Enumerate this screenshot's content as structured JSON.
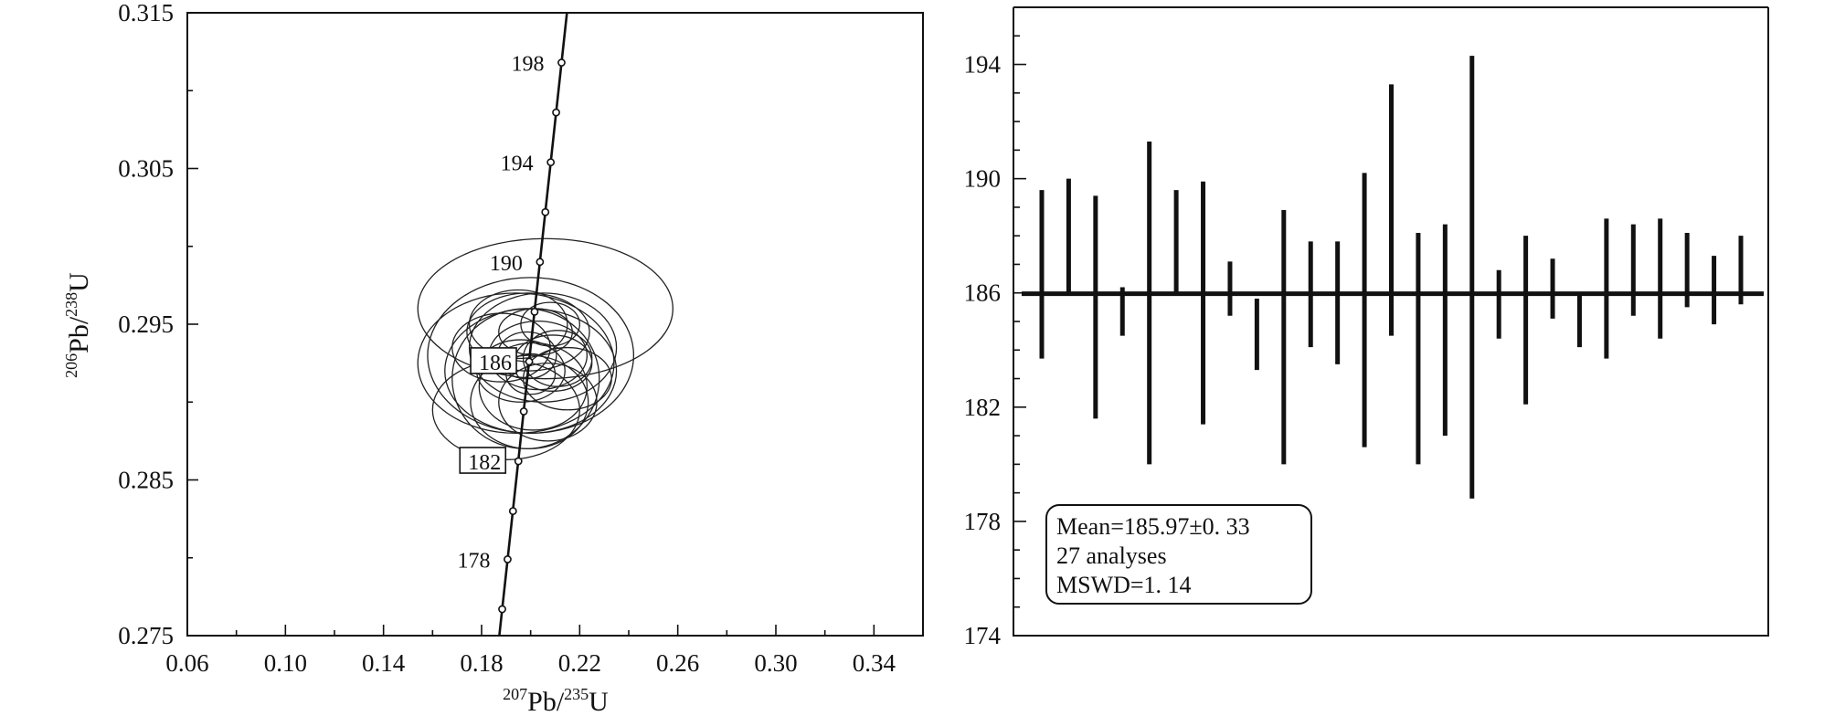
{
  "chart_data": [
    {
      "type": "concordia",
      "xlabel": {
        "sup": "207",
        "main": "Pb/",
        "sup2": "235",
        "end": "U"
      },
      "ylabel": {
        "sup": "206",
        "main": "Pb/",
        "sup2": "238",
        "end": "U"
      },
      "xlim": [
        0.06,
        0.36
      ],
      "ylim": [
        0.275,
        0.315
      ],
      "x_ticks": [
        "0.06",
        "0.10",
        "0.14",
        "0.18",
        "0.22",
        "0.26",
        "0.30",
        "0.34"
      ],
      "y_ticks": [
        "0.275",
        "0.285",
        "0.295",
        "0.305",
        "0.315"
      ],
      "grid": false,
      "concordia_points": [
        {
          "age": 176,
          "x": 0.1884,
          "y": 0.2767
        },
        {
          "age": 178,
          "x": 0.1906,
          "y": 0.2799
        },
        {
          "age": 180,
          "x": 0.1928,
          "y": 0.283
        },
        {
          "age": 182,
          "x": 0.195,
          "y": 0.2862
        },
        {
          "age": 184,
          "x": 0.1972,
          "y": 0.2894
        },
        {
          "age": 186,
          "x": 0.1994,
          "y": 0.2926
        },
        {
          "age": 188,
          "x": 0.2016,
          "y": 0.2958
        },
        {
          "age": 190,
          "x": 0.2038,
          "y": 0.299
        },
        {
          "age": 192,
          "x": 0.206,
          "y": 0.3022
        },
        {
          "age": 194,
          "x": 0.2082,
          "y": 0.3054
        },
        {
          "age": 196,
          "x": 0.2104,
          "y": 0.3086
        },
        {
          "age": 198,
          "x": 0.2126,
          "y": 0.3118
        }
      ],
      "age_labels": [
        {
          "text": "198",
          "age": 198,
          "boxed": false
        },
        {
          "text": "194",
          "age": 194,
          "boxed": false
        },
        {
          "text": "190",
          "age": 190,
          "boxed": false
        },
        {
          "text": "186",
          "age": 186,
          "boxed": true
        },
        {
          "text": "182",
          "age": 182,
          "boxed": true
        },
        {
          "text": "178",
          "age": 178,
          "boxed": false
        }
      ],
      "error_ellipses": [
        {
          "cx": 0.206,
          "cy": 0.296,
          "rx": 0.052,
          "ry": 0.0045
        },
        {
          "cx": 0.2,
          "cy": 0.293,
          "rx": 0.042,
          "ry": 0.005
        },
        {
          "cx": 0.194,
          "cy": 0.2925,
          "rx": 0.04,
          "ry": 0.0045
        },
        {
          "cx": 0.2,
          "cy": 0.292,
          "rx": 0.035,
          "ry": 0.004
        },
        {
          "cx": 0.205,
          "cy": 0.2935,
          "rx": 0.03,
          "ry": 0.0035
        },
        {
          "cx": 0.198,
          "cy": 0.2915,
          "rx": 0.03,
          "ry": 0.0045
        },
        {
          "cx": 0.19,
          "cy": 0.2895,
          "rx": 0.03,
          "ry": 0.0032
        },
        {
          "cx": 0.199,
          "cy": 0.2945,
          "rx": 0.025,
          "ry": 0.0025
        },
        {
          "cx": 0.201,
          "cy": 0.291,
          "rx": 0.022,
          "ry": 0.0028
        },
        {
          "cx": 0.203,
          "cy": 0.293,
          "rx": 0.02,
          "ry": 0.0022
        },
        {
          "cx": 0.196,
          "cy": 0.292,
          "rx": 0.018,
          "ry": 0.002
        },
        {
          "cx": 0.209,
          "cy": 0.2925,
          "rx": 0.016,
          "ry": 0.0018
        },
        {
          "cx": 0.207,
          "cy": 0.29,
          "rx": 0.02,
          "ry": 0.0025
        },
        {
          "cx": 0.195,
          "cy": 0.295,
          "rx": 0.02,
          "ry": 0.0022
        },
        {
          "cx": 0.202,
          "cy": 0.2945,
          "rx": 0.015,
          "ry": 0.0015
        },
        {
          "cx": 0.1985,
          "cy": 0.293,
          "rx": 0.012,
          "ry": 0.0015
        },
        {
          "cx": 0.2,
          "cy": 0.2918,
          "rx": 0.01,
          "ry": 0.0013
        },
        {
          "cx": 0.211,
          "cy": 0.2928,
          "rx": 0.014,
          "ry": 0.0018
        },
        {
          "cx": 0.188,
          "cy": 0.2935,
          "rx": 0.02,
          "ry": 0.0022
        },
        {
          "cx": 0.215,
          "cy": 0.2915,
          "rx": 0.018,
          "ry": 0.002
        },
        {
          "cx": 0.208,
          "cy": 0.295,
          "rx": 0.012,
          "ry": 0.0014
        },
        {
          "cx": 0.1995,
          "cy": 0.29,
          "rx": 0.024,
          "ry": 0.003
        }
      ]
    },
    {
      "type": "weighted-mean-bar",
      "ylim": [
        174,
        196
      ],
      "y_ticks": [
        "174",
        "178",
        "182",
        "186",
        "190",
        "194"
      ],
      "grid": false,
      "mean": 185.97,
      "bars": [
        {
          "low": 183.7,
          "high": 189.6
        },
        {
          "low": 186.0,
          "high": 190.0
        },
        {
          "low": 181.6,
          "high": 189.4
        },
        {
          "low": 184.5,
          "high": 186.2
        },
        {
          "low": 180.0,
          "high": 191.3
        },
        {
          "low": 186.0,
          "high": 189.6
        },
        {
          "low": 181.4,
          "high": 189.9
        },
        {
          "low": 185.2,
          "high": 187.1
        },
        {
          "low": 183.3,
          "high": 185.8
        },
        {
          "low": 180.0,
          "high": 188.9
        },
        {
          "low": 184.1,
          "high": 187.8
        },
        {
          "low": 183.5,
          "high": 187.8
        },
        {
          "low": 180.6,
          "high": 190.2
        },
        {
          "low": 184.5,
          "high": 193.3
        },
        {
          "low": 180.0,
          "high": 188.1
        },
        {
          "low": 181.0,
          "high": 188.4
        },
        {
          "low": 178.8,
          "high": 194.3
        },
        {
          "low": 184.4,
          "high": 186.8
        },
        {
          "low": 182.1,
          "high": 188.0
        },
        {
          "low": 185.1,
          "high": 187.2
        },
        {
          "low": 184.1,
          "high": 185.9
        },
        {
          "low": 183.7,
          "high": 188.6
        },
        {
          "low": 185.2,
          "high": 188.4
        },
        {
          "low": 184.4,
          "high": 188.6
        },
        {
          "low": 185.5,
          "high": 188.1
        },
        {
          "low": 184.9,
          "high": 187.3
        },
        {
          "low": 185.6,
          "high": 188.0
        }
      ],
      "annotation": {
        "line1": "Mean=185.97±0. 33",
        "line2": "27 analyses",
        "line3": "MSWD=1. 14"
      }
    }
  ]
}
